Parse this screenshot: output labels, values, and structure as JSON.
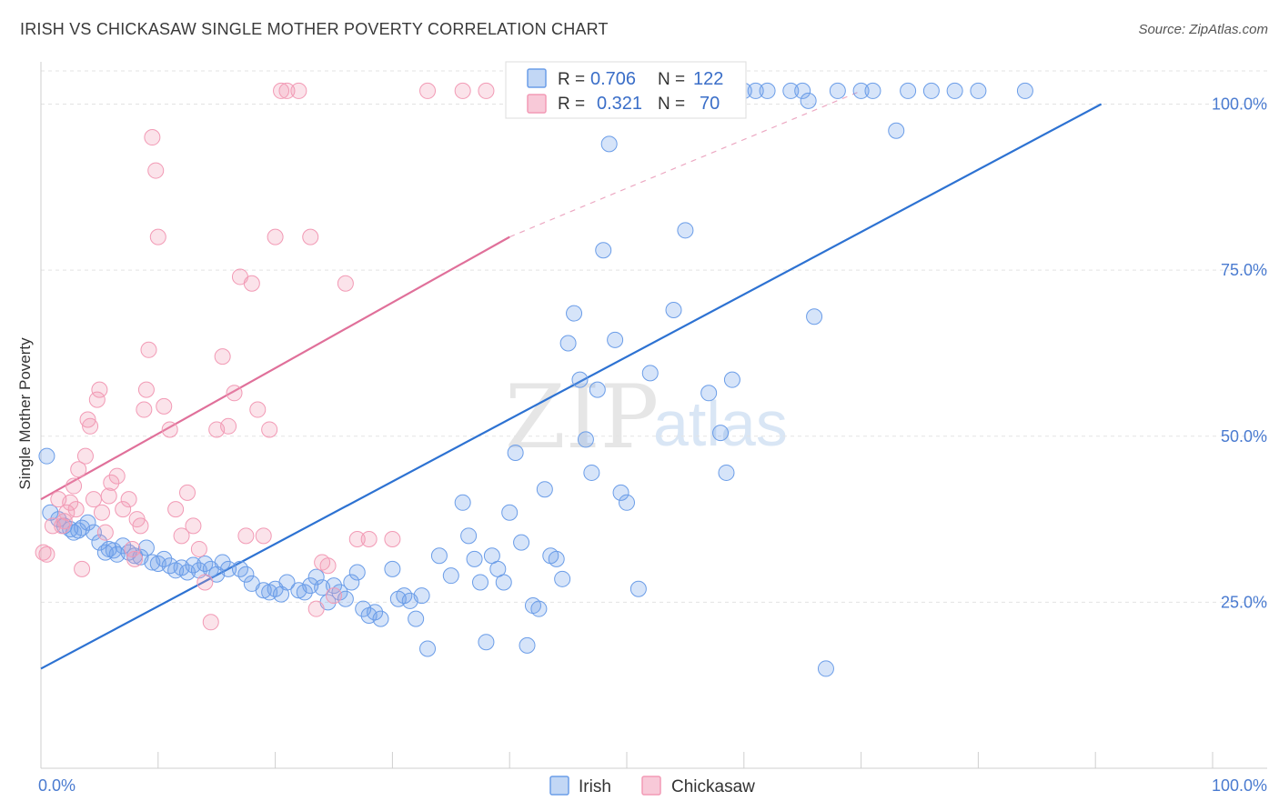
{
  "header": {
    "title": "IRISH VS CHICKASAW SINGLE MOTHER POVERTY CORRELATION CHART",
    "source": "Source: ZipAtlas.com"
  },
  "watermark": {
    "zip": "ZIP",
    "atlas": "atlas"
  },
  "colors": {
    "irish": "#6b9de8",
    "chickasaw": "#f29ab5",
    "irish_line": "#2d72d2",
    "chickasaw_line": "#e0709a",
    "tick": "#4a7bd0"
  },
  "chart_data": {
    "type": "scatter",
    "title": "IRISH VS CHICKASAW SINGLE MOTHER POVERTY CORRELATION CHART",
    "xlabel": "",
    "ylabel": "Single Mother Poverty",
    "xlim": [
      0,
      100
    ],
    "ylim": [
      0,
      105
    ],
    "x_tick_labels": {
      "left": "0.0%",
      "right": "100.0%"
    },
    "y_ticks": [
      {
        "value": 25,
        "label": "25.0%"
      },
      {
        "value": 50,
        "label": "50.0%"
      },
      {
        "value": 75,
        "label": "75.0%"
      },
      {
        "value": 100,
        "label": "100.0%"
      }
    ],
    "legend": {
      "position": "top-center",
      "entries": [
        {
          "name": "Irish",
          "r_label": "R =",
          "r": "0.706",
          "n_label": "N =",
          "n": "122"
        },
        {
          "name": "Chickasaw",
          "r_label": "R =",
          "r": "0.321",
          "n_label": "N =",
          "n": "70"
        }
      ]
    },
    "bottom_legend": [
      "Irish",
      "Chickasaw"
    ],
    "series": [
      {
        "name": "Irish",
        "trend": {
          "x": [
            0,
            90.5
          ],
          "y": [
            15,
            100
          ]
        },
        "points": [
          [
            0.5,
            47
          ],
          [
            0.8,
            38.5
          ],
          [
            1.5,
            37.5
          ],
          [
            2,
            36.5
          ],
          [
            2.5,
            36
          ],
          [
            2.8,
            35.5
          ],
          [
            3.2,
            35.8
          ],
          [
            3.5,
            36.2
          ],
          [
            4,
            37
          ],
          [
            4.5,
            35.5
          ],
          [
            5,
            34
          ],
          [
            5.5,
            32.5
          ],
          [
            5.8,
            33
          ],
          [
            6.2,
            32.8
          ],
          [
            6.5,
            32.2
          ],
          [
            7,
            33.5
          ],
          [
            7.5,
            32.5
          ],
          [
            8,
            32
          ],
          [
            8.5,
            31.8
          ],
          [
            9,
            33.2
          ],
          [
            9.5,
            31
          ],
          [
            10,
            30.8
          ],
          [
            10.5,
            31.5
          ],
          [
            11,
            30.5
          ],
          [
            11.5,
            29.8
          ],
          [
            12,
            30.2
          ],
          [
            12.5,
            29.5
          ],
          [
            13,
            30.6
          ],
          [
            13.5,
            29.8
          ],
          [
            14,
            30.8
          ],
          [
            14.5,
            30
          ],
          [
            15,
            29.2
          ],
          [
            15.5,
            31
          ],
          [
            16,
            30
          ],
          [
            17,
            30
          ],
          [
            17.5,
            29.2
          ],
          [
            18,
            27.8
          ],
          [
            19,
            26.8
          ],
          [
            19.5,
            26.5
          ],
          [
            20,
            27
          ],
          [
            20.5,
            26.2
          ],
          [
            21,
            28
          ],
          [
            22,
            26.8
          ],
          [
            22.5,
            26.5
          ],
          [
            23,
            27.5
          ],
          [
            23.5,
            28.8
          ],
          [
            24,
            27.2
          ],
          [
            24.5,
            25
          ],
          [
            25,
            27.5
          ],
          [
            25.5,
            26.5
          ],
          [
            26,
            25.5
          ],
          [
            26.5,
            28
          ],
          [
            27,
            29.5
          ],
          [
            27.5,
            24
          ],
          [
            28,
            23
          ],
          [
            28.5,
            23.5
          ],
          [
            29,
            22.5
          ],
          [
            30,
            30
          ],
          [
            30.5,
            25.5
          ],
          [
            31,
            26
          ],
          [
            31.5,
            25.2
          ],
          [
            32,
            22.5
          ],
          [
            32.5,
            26
          ],
          [
            33,
            18
          ],
          [
            34,
            32
          ],
          [
            35,
            29
          ],
          [
            36,
            40
          ],
          [
            36.5,
            35
          ],
          [
            37,
            31.5
          ],
          [
            37.5,
            28
          ],
          [
            38,
            19
          ],
          [
            38.5,
            32
          ],
          [
            39,
            30
          ],
          [
            39.5,
            28
          ],
          [
            40,
            38.5
          ],
          [
            40.5,
            47.5
          ],
          [
            41,
            34
          ],
          [
            41.5,
            18.5
          ],
          [
            42,
            24.5
          ],
          [
            42.5,
            24
          ],
          [
            43,
            42
          ],
          [
            43.5,
            32
          ],
          [
            44,
            31.5
          ],
          [
            44.5,
            28.5
          ],
          [
            45,
            64
          ],
          [
            45.5,
            68.5
          ],
          [
            46,
            58.5
          ],
          [
            46.5,
            49.5
          ],
          [
            47,
            44.5
          ],
          [
            47.5,
            57
          ],
          [
            48,
            78
          ],
          [
            48.5,
            94
          ],
          [
            49,
            64.5
          ],
          [
            49.5,
            41.5
          ],
          [
            50,
            40
          ],
          [
            51,
            27
          ],
          [
            52,
            59.5
          ],
          [
            53,
            102
          ],
          [
            54,
            69
          ],
          [
            55,
            81
          ],
          [
            56,
            102
          ],
          [
            57,
            56.5
          ],
          [
            58,
            50.5
          ],
          [
            58.5,
            44.5
          ],
          [
            59,
            58.5
          ],
          [
            60,
            102
          ],
          [
            61,
            102
          ],
          [
            62,
            102
          ],
          [
            64,
            102
          ],
          [
            65,
            102
          ],
          [
            65.5,
            100.5
          ],
          [
            66,
            68
          ],
          [
            67,
            15
          ],
          [
            68,
            102
          ],
          [
            70,
            102
          ],
          [
            71,
            102
          ],
          [
            73,
            96
          ],
          [
            74,
            102
          ],
          [
            76,
            102
          ],
          [
            78,
            102
          ],
          [
            80,
            102
          ],
          [
            84,
            102
          ]
        ]
      },
      {
        "name": "Chickasaw",
        "trend": {
          "x": [
            0,
            40
          ],
          "y": [
            40.5,
            80
          ]
        },
        "trend_extended": {
          "x": [
            40,
            70
          ],
          "y": [
            80,
            102
          ]
        },
        "points": [
          [
            0.2,
            32.5
          ],
          [
            0.5,
            32.2
          ],
          [
            1,
            36.5
          ],
          [
            1.5,
            40.5
          ],
          [
            1.8,
            36.5
          ],
          [
            2,
            37.2
          ],
          [
            2.2,
            38.5
          ],
          [
            2.5,
            40
          ],
          [
            2.8,
            42.5
          ],
          [
            3,
            39
          ],
          [
            3.2,
            45
          ],
          [
            3.5,
            30
          ],
          [
            3.8,
            47
          ],
          [
            4,
            52.5
          ],
          [
            4.2,
            51.5
          ],
          [
            4.5,
            40.5
          ],
          [
            4.8,
            55.5
          ],
          [
            5,
            57
          ],
          [
            5.2,
            38.5
          ],
          [
            5.5,
            35.5
          ],
          [
            5.8,
            41
          ],
          [
            6,
            43
          ],
          [
            6.5,
            44
          ],
          [
            7,
            39
          ],
          [
            7.5,
            40.5
          ],
          [
            7.8,
            33
          ],
          [
            8,
            31.5
          ],
          [
            8.2,
            37.5
          ],
          [
            8.5,
            36.5
          ],
          [
            8.8,
            54
          ],
          [
            9,
            57
          ],
          [
            9.2,
            63
          ],
          [
            9.5,
            95
          ],
          [
            9.8,
            90
          ],
          [
            10,
            80
          ],
          [
            10.5,
            54.5
          ],
          [
            11,
            51
          ],
          [
            11.5,
            39
          ],
          [
            12,
            35
          ],
          [
            12.5,
            41.5
          ],
          [
            13,
            36.5
          ],
          [
            13.5,
            33
          ],
          [
            14,
            28
          ],
          [
            14.5,
            22
          ],
          [
            15,
            51
          ],
          [
            15.5,
            62
          ],
          [
            16,
            51.5
          ],
          [
            16.5,
            56.5
          ],
          [
            17,
            74
          ],
          [
            17.5,
            35
          ],
          [
            18,
            73
          ],
          [
            18.5,
            54
          ],
          [
            19,
            35
          ],
          [
            19.5,
            51
          ],
          [
            20,
            80
          ],
          [
            20.5,
            102
          ],
          [
            21,
            102
          ],
          [
            22,
            102
          ],
          [
            23,
            80
          ],
          [
            23.5,
            24
          ],
          [
            24,
            31
          ],
          [
            24.5,
            30.5
          ],
          [
            25,
            26
          ],
          [
            26,
            73
          ],
          [
            27,
            34.5
          ],
          [
            28,
            34.5
          ],
          [
            30,
            34.5
          ],
          [
            33,
            102
          ],
          [
            36,
            102
          ],
          [
            38,
            102
          ]
        ]
      }
    ]
  }
}
